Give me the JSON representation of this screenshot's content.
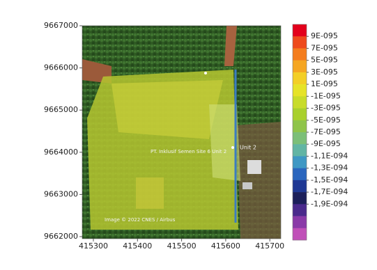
{
  "axes": {
    "x_ticks": [
      415300,
      415400,
      415500,
      415600,
      415700
    ],
    "y_ticks": [
      9667000,
      9666000,
      9665000,
      9664000,
      9663000,
      9662000
    ]
  },
  "colorbar": {
    "labels": [
      "9E-095",
      "7E-095",
      "5E-095",
      "3E-095",
      "1E-095",
      "-1E-095",
      "-3E-095",
      "-5E-095",
      "-7E-095",
      "-9E-095",
      "-1,1E-094",
      "-1,3E-094",
      "-1,5E-094",
      "-1,7E-094",
      "-1,9E-094"
    ],
    "colors": [
      "#e3001b",
      "#ee4a1c",
      "#f47d1e",
      "#f5a622",
      "#f3cf26",
      "#e6e328",
      "#c8dc2a",
      "#a9d02c",
      "#8fc44a",
      "#7cbf78",
      "#62b5a4",
      "#3f98c4",
      "#2a66be",
      "#1f3894",
      "#1c1f5a",
      "#4a2a8c",
      "#8a3aa8",
      "#c050b8"
    ]
  },
  "annotations": {
    "unit": "Unit 2",
    "credit": "Image © 2022 CNES / Airbus",
    "site": "PT. Inklusif Semen Site 6 Unit 2"
  }
}
